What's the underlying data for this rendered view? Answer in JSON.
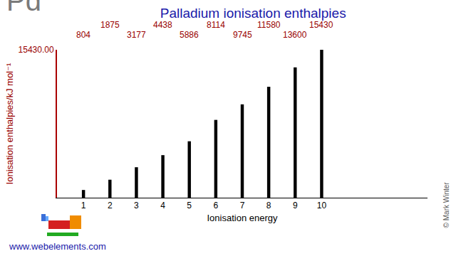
{
  "chart_data": {
    "type": "bar",
    "title": "Palladium ionisation enthalpies",
    "xlabel": "Ionisation energy",
    "ylabel": "Ionisation enthalpies/kJ mol⁻¹",
    "x": [
      1,
      2,
      3,
      4,
      5,
      6,
      7,
      8,
      9,
      10
    ],
    "values": [
      804,
      1875,
      3177,
      4438,
      5886,
      8114,
      9745,
      11580,
      13600,
      15430
    ],
    "color": "#000000",
    "xlim": [
      0,
      14
    ],
    "xticks": [
      1,
      2,
      3,
      4,
      5,
      6,
      7,
      8,
      9,
      10
    ],
    "ylim": [
      0,
      15430
    ],
    "yticks": [
      {
        "value": 15430,
        "label": "15430.00"
      }
    ],
    "grid": false,
    "data_labels": true,
    "annotations": [
      "Pd",
      "www.webelements.com",
      "© Mark Winter"
    ]
  }
}
